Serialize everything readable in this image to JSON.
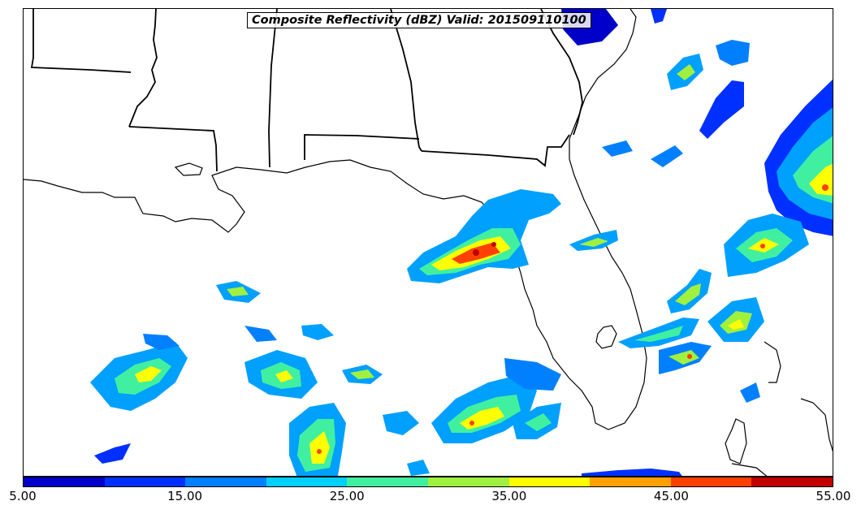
{
  "title": "Composite Reflectivity (dBZ) Valid: 201509110100",
  "colorbar": {
    "colors": [
      "#0000c8",
      "#0030ff",
      "#0080ff",
      "#00d0ff",
      "#40f0a0",
      "#a0f040",
      "#ffff00",
      "#ffa000",
      "#ff4000",
      "#c00000"
    ],
    "tick_labels": [
      "5.00",
      "15.00",
      "25.00",
      "35.00",
      "45.00",
      "55.00"
    ],
    "min": 5,
    "max": 55
  },
  "map": {
    "region": "Southeastern United States / Gulf of Mexico",
    "features": [
      "state-borders",
      "coastline"
    ],
    "states_visible": [
      "Louisiana",
      "Mississippi",
      "Alabama",
      "Georgia",
      "Florida",
      "South Carolina"
    ]
  }
}
